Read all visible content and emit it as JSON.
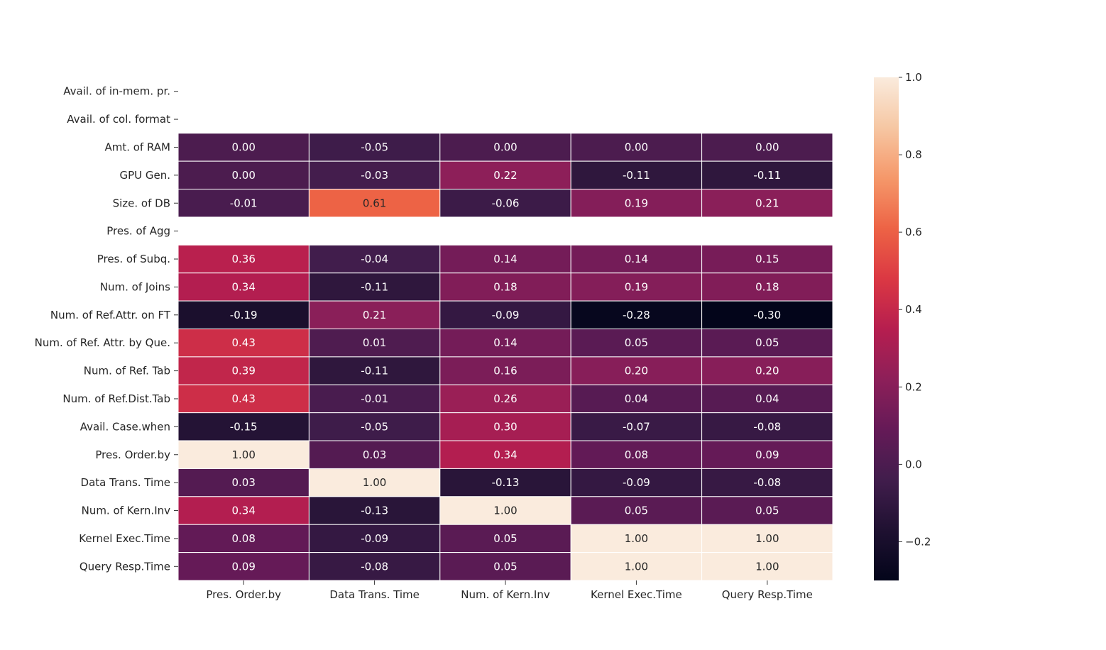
{
  "chart_data": {
    "type": "heatmap",
    "title": "",
    "xlabel": "",
    "ylabel": "",
    "columns": [
      "Pres. Order.by",
      "Data Trans. Time",
      "Num. of Kern.Inv",
      "Kernel Exec.Time",
      "Query Resp.Time"
    ],
    "rows": [
      "Avail. of in-mem. pr.",
      "Avail. of col. format",
      "Amt. of RAM",
      "GPU Gen.",
      "Size. of DB",
      "Pres. of Agg",
      "Pres. of Subq.",
      "Num. of Joins",
      "Num. of Ref.Attr. on FT",
      "Num. of Ref. Attr. by Que.",
      "Num. of Ref. Tab",
      "Num. of Ref.Dist.Tab",
      "Avail. Case.when",
      "Pres. Order.by",
      "Data Trans. Time",
      "Num. of Kern.Inv",
      "Kernel Exec.Time",
      "Query Resp.Time"
    ],
    "values": [
      [
        null,
        null,
        null,
        null,
        null
      ],
      [
        null,
        null,
        null,
        null,
        null
      ],
      [
        0.0,
        -0.05,
        0.0,
        0.0,
        0.0
      ],
      [
        0.0,
        -0.03,
        0.22,
        -0.11,
        -0.11
      ],
      [
        -0.01,
        0.61,
        -0.06,
        0.19,
        0.21
      ],
      [
        null,
        null,
        null,
        null,
        null
      ],
      [
        0.36,
        -0.04,
        0.14,
        0.14,
        0.15
      ],
      [
        0.34,
        -0.11,
        0.18,
        0.19,
        0.18
      ],
      [
        -0.19,
        0.21,
        -0.09,
        -0.28,
        -0.3
      ],
      [
        0.43,
        0.01,
        0.14,
        0.05,
        0.05
      ],
      [
        0.39,
        -0.11,
        0.16,
        0.2,
        0.2
      ],
      [
        0.43,
        -0.01,
        0.26,
        0.04,
        0.04
      ],
      [
        -0.15,
        -0.05,
        0.3,
        -0.07,
        -0.08
      ],
      [
        1.0,
        0.03,
        0.34,
        0.08,
        0.09
      ],
      [
        0.03,
        1.0,
        -0.13,
        -0.09,
        -0.08
      ],
      [
        0.34,
        -0.13,
        1.0,
        0.05,
        0.05
      ],
      [
        0.08,
        -0.09,
        0.05,
        1.0,
        1.0
      ],
      [
        0.09,
        -0.08,
        0.05,
        1.0,
        1.0
      ]
    ],
    "colorbar": {
      "vmin": -0.3,
      "vmax": 1.0,
      "ticks": [
        -0.2,
        0.0,
        0.2,
        0.4,
        0.6,
        0.8,
        1.0
      ],
      "tick_labels": [
        "−0.2",
        "0.0",
        "0.2",
        "0.4",
        "0.6",
        "0.8",
        "1.0"
      ],
      "colormap": "rocket"
    },
    "value_format": "0.00",
    "grid": false,
    "cell_border_color": "#ffffff"
  }
}
